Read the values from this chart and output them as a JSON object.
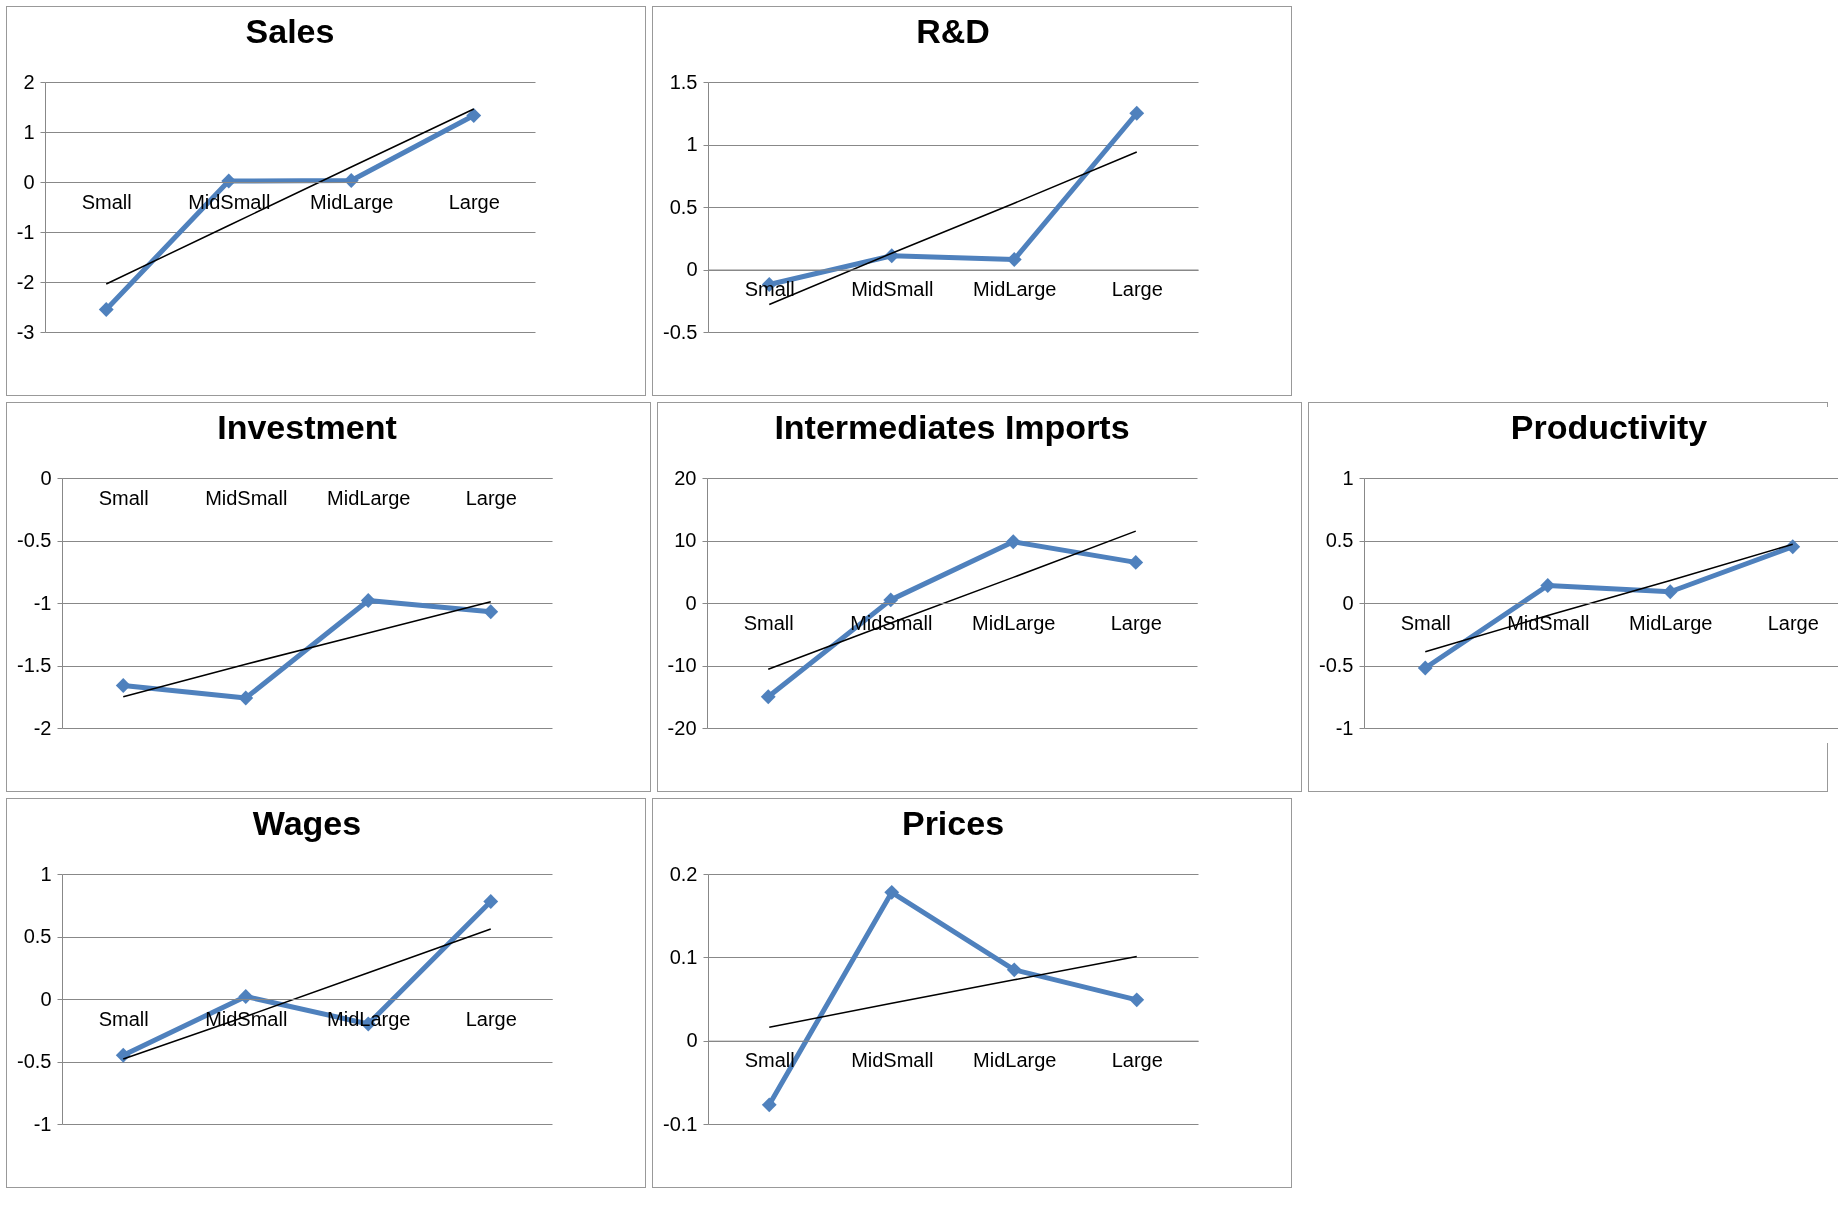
{
  "chart_data": [
    {
      "type": "line",
      "title": "Sales",
      "categories": [
        "Small",
        "MidSmall",
        "MidLarge",
        "Large"
      ],
      "ylim": [
        -3,
        2
      ],
      "yticks": [
        -3,
        -2,
        -1,
        0,
        1,
        2
      ],
      "grid": "y",
      "marker": "diamond",
      "series": [
        {
          "color": "#4f81bd",
          "values": [
            -2.55,
            0.02,
            0.03,
            1.33
          ]
        },
        {
          "type": "line",
          "color": "#000000",
          "marker": "none",
          "values": [
            -2.04,
            -0.87,
            0.3,
            1.46
          ]
        }
      ]
    },
    {
      "type": "line",
      "title": "R&D",
      "categories": [
        "Small",
        "MidSmall",
        "MidLarge",
        "Large"
      ],
      "ylim": [
        -0.5,
        1.5
      ],
      "yticks": [
        -0.5,
        0,
        0.5,
        1,
        1.5
      ],
      "grid": "y",
      "marker": "diamond",
      "series": [
        {
          "color": "#4f81bd",
          "values": [
            -0.12,
            0.11,
            0.08,
            1.25
          ]
        },
        {
          "type": "line",
          "color": "#000000",
          "marker": "none",
          "values": [
            -0.28,
            0.13,
            0.53,
            0.94
          ]
        }
      ]
    },
    {
      "type": "line",
      "title": "Investment",
      "categories": [
        "Small",
        "MidSmall",
        "MidLarge",
        "Large"
      ],
      "ylim": [
        -2,
        0
      ],
      "yticks": [
        -2,
        -1.5,
        -1,
        -0.5,
        0
      ],
      "grid": "y",
      "marker": "diamond",
      "series": [
        {
          "color": "#4f81bd",
          "values": [
            -1.66,
            -1.76,
            -0.98,
            -1.07
          ]
        },
        {
          "type": "line",
          "color": "#000000",
          "marker": "none",
          "values": [
            -1.75,
            -1.49,
            -1.24,
            -0.99
          ]
        }
      ]
    },
    {
      "type": "line",
      "title": "Intermediates Imports",
      "categories": [
        "Small",
        "MidSmall",
        "MidLarge",
        "Large"
      ],
      "ylim": [
        -20,
        20
      ],
      "yticks": [
        -20,
        -10,
        0,
        10,
        20
      ],
      "grid": "y",
      "marker": "diamond",
      "series": [
        {
          "color": "#4f81bd",
          "values": [
            -15,
            0.5,
            9.8,
            6.5
          ]
        },
        {
          "type": "line",
          "color": "#000000",
          "marker": "none",
          "values": [
            -10.6,
            -3.2,
            4.1,
            11.5
          ]
        }
      ]
    },
    {
      "type": "line",
      "title": "Productivity",
      "categories": [
        "Small",
        "MidSmall",
        "MidLarge",
        "Large"
      ],
      "ylim": [
        -1,
        1
      ],
      "yticks": [
        -1,
        -0.5,
        0,
        0.5,
        1
      ],
      "grid": "y",
      "marker": "diamond",
      "series": [
        {
          "color": "#4f81bd",
          "values": [
            -0.52,
            0.14,
            0.09,
            0.45
          ]
        },
        {
          "type": "line",
          "color": "#000000",
          "marker": "none",
          "values": [
            -0.39,
            -0.1,
            0.18,
            0.47
          ]
        }
      ]
    },
    {
      "type": "line",
      "title": "Wages",
      "categories": [
        "Small",
        "MidSmall",
        "MidLarge",
        "Large"
      ],
      "ylim": [
        -1,
        1
      ],
      "yticks": [
        -1,
        -0.5,
        0,
        0.5,
        1
      ],
      "grid": "y",
      "marker": "diamond",
      "series": [
        {
          "color": "#4f81bd",
          "values": [
            -0.45,
            0.02,
            -0.2,
            0.78
          ]
        },
        {
          "type": "line",
          "color": "#000000",
          "marker": "none",
          "values": [
            -0.48,
            -0.14,
            0.21,
            0.56
          ]
        }
      ]
    },
    {
      "type": "line",
      "title": "Prices",
      "categories": [
        "Small",
        "MidSmall",
        "MidLarge",
        "Large"
      ],
      "ylim": [
        -0.1,
        0.2
      ],
      "yticks": [
        -0.1,
        0,
        0.1,
        0.2
      ],
      "grid": "y",
      "marker": "diamond",
      "series": [
        {
          "color": "#4f81bd",
          "values": [
            -0.077,
            0.178,
            0.085,
            0.049
          ]
        },
        {
          "type": "line",
          "color": "#000000",
          "marker": "none",
          "values": [
            0.016,
            0.045,
            0.073,
            0.101
          ]
        }
      ]
    }
  ]
}
